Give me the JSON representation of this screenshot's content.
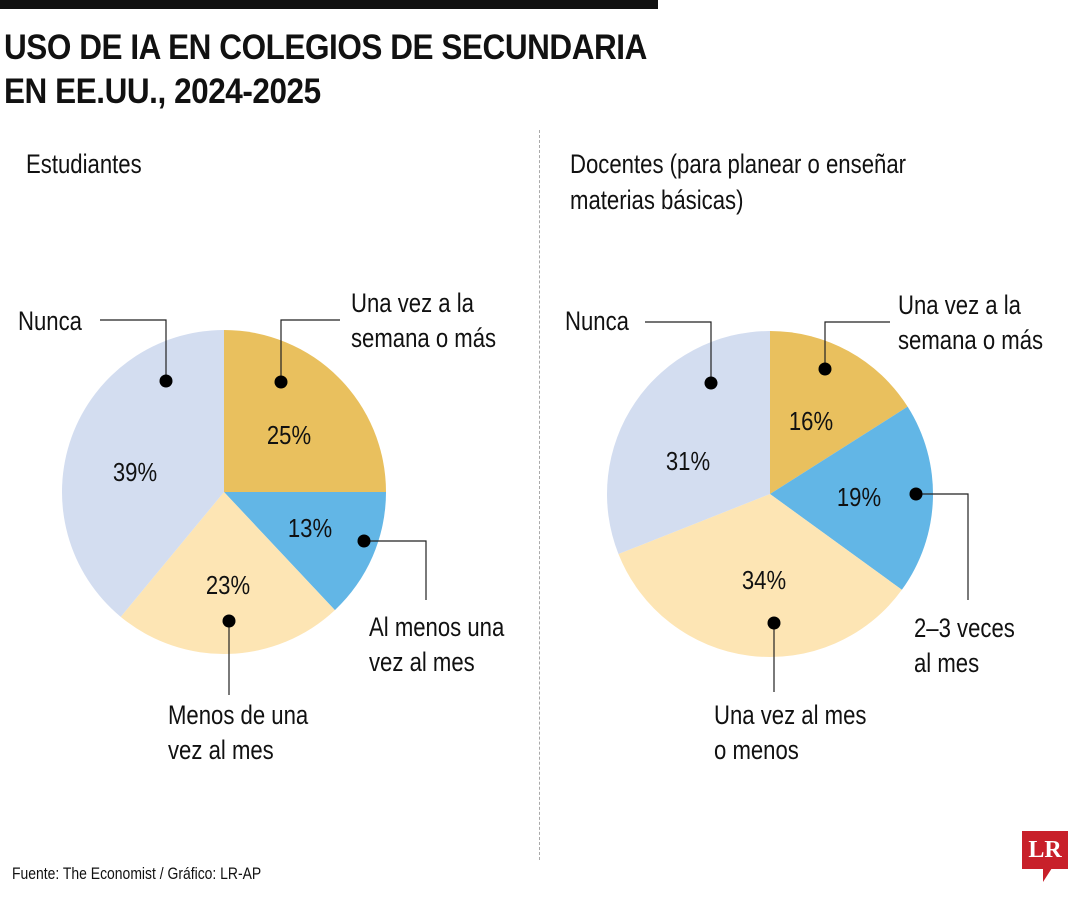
{
  "title_lines": [
    "USO DE IA EN COLEGIOS DE SECUNDARIA",
    "EN EE.UU., 2024-2025"
  ],
  "source": "Fuente: The Economist / Gráfico: LR-AP",
  "logo": "LR",
  "colors": {
    "gold": "#e9c05e",
    "blue": "#62b6e6",
    "light_yellow": "#fde5b4",
    "light_blue": "#d3ddf0"
  },
  "chart_data": [
    {
      "type": "pie",
      "title": "Estudiantes",
      "start": "12 o'clock, clockwise",
      "slices": [
        {
          "label": "Una vez a la semana o más",
          "label_lines": [
            "Una vez a la",
            "semana o más"
          ],
          "value": 25,
          "display": "25%",
          "color": "#e9c05e"
        },
        {
          "label": "Al menos una vez al mes",
          "label_lines": [
            "Al menos una",
            "vez al mes"
          ],
          "value": 13,
          "display": "13%",
          "color": "#62b6e6"
        },
        {
          "label": "Menos de una vez al mes",
          "label_lines": [
            "Menos de una",
            "vez al mes"
          ],
          "value": 23,
          "display": "23%",
          "color": "#fde5b4"
        },
        {
          "label": "Nunca",
          "label_lines": [
            "Nunca"
          ],
          "value": 39,
          "display": "39%",
          "color": "#d3ddf0"
        }
      ]
    },
    {
      "type": "pie",
      "title": "Docentes (para planear o enseñar materias básicas)",
      "title_lines": [
        "Docentes (para planear o enseñar",
        "materias básicas)"
      ],
      "start": "12 o'clock, clockwise",
      "slices": [
        {
          "label": "Una vez a la semana o más",
          "label_lines": [
            "Una vez a la",
            "semana o más"
          ],
          "value": 16,
          "display": "16%",
          "color": "#e9c05e"
        },
        {
          "label": "2–3 veces al mes",
          "label_lines": [
            "2–3 veces",
            "al mes"
          ],
          "value": 19,
          "display": "19%",
          "color": "#62b6e6"
        },
        {
          "label": "Una vez al mes o menos",
          "label_lines": [
            "Una vez al mes",
            "o menos"
          ],
          "value": 34,
          "display": "34%",
          "color": "#fde5b4"
        },
        {
          "label": "Nunca",
          "label_lines": [
            "Nunca"
          ],
          "value": 31,
          "display": "31%",
          "color": "#d3ddf0"
        }
      ]
    }
  ]
}
